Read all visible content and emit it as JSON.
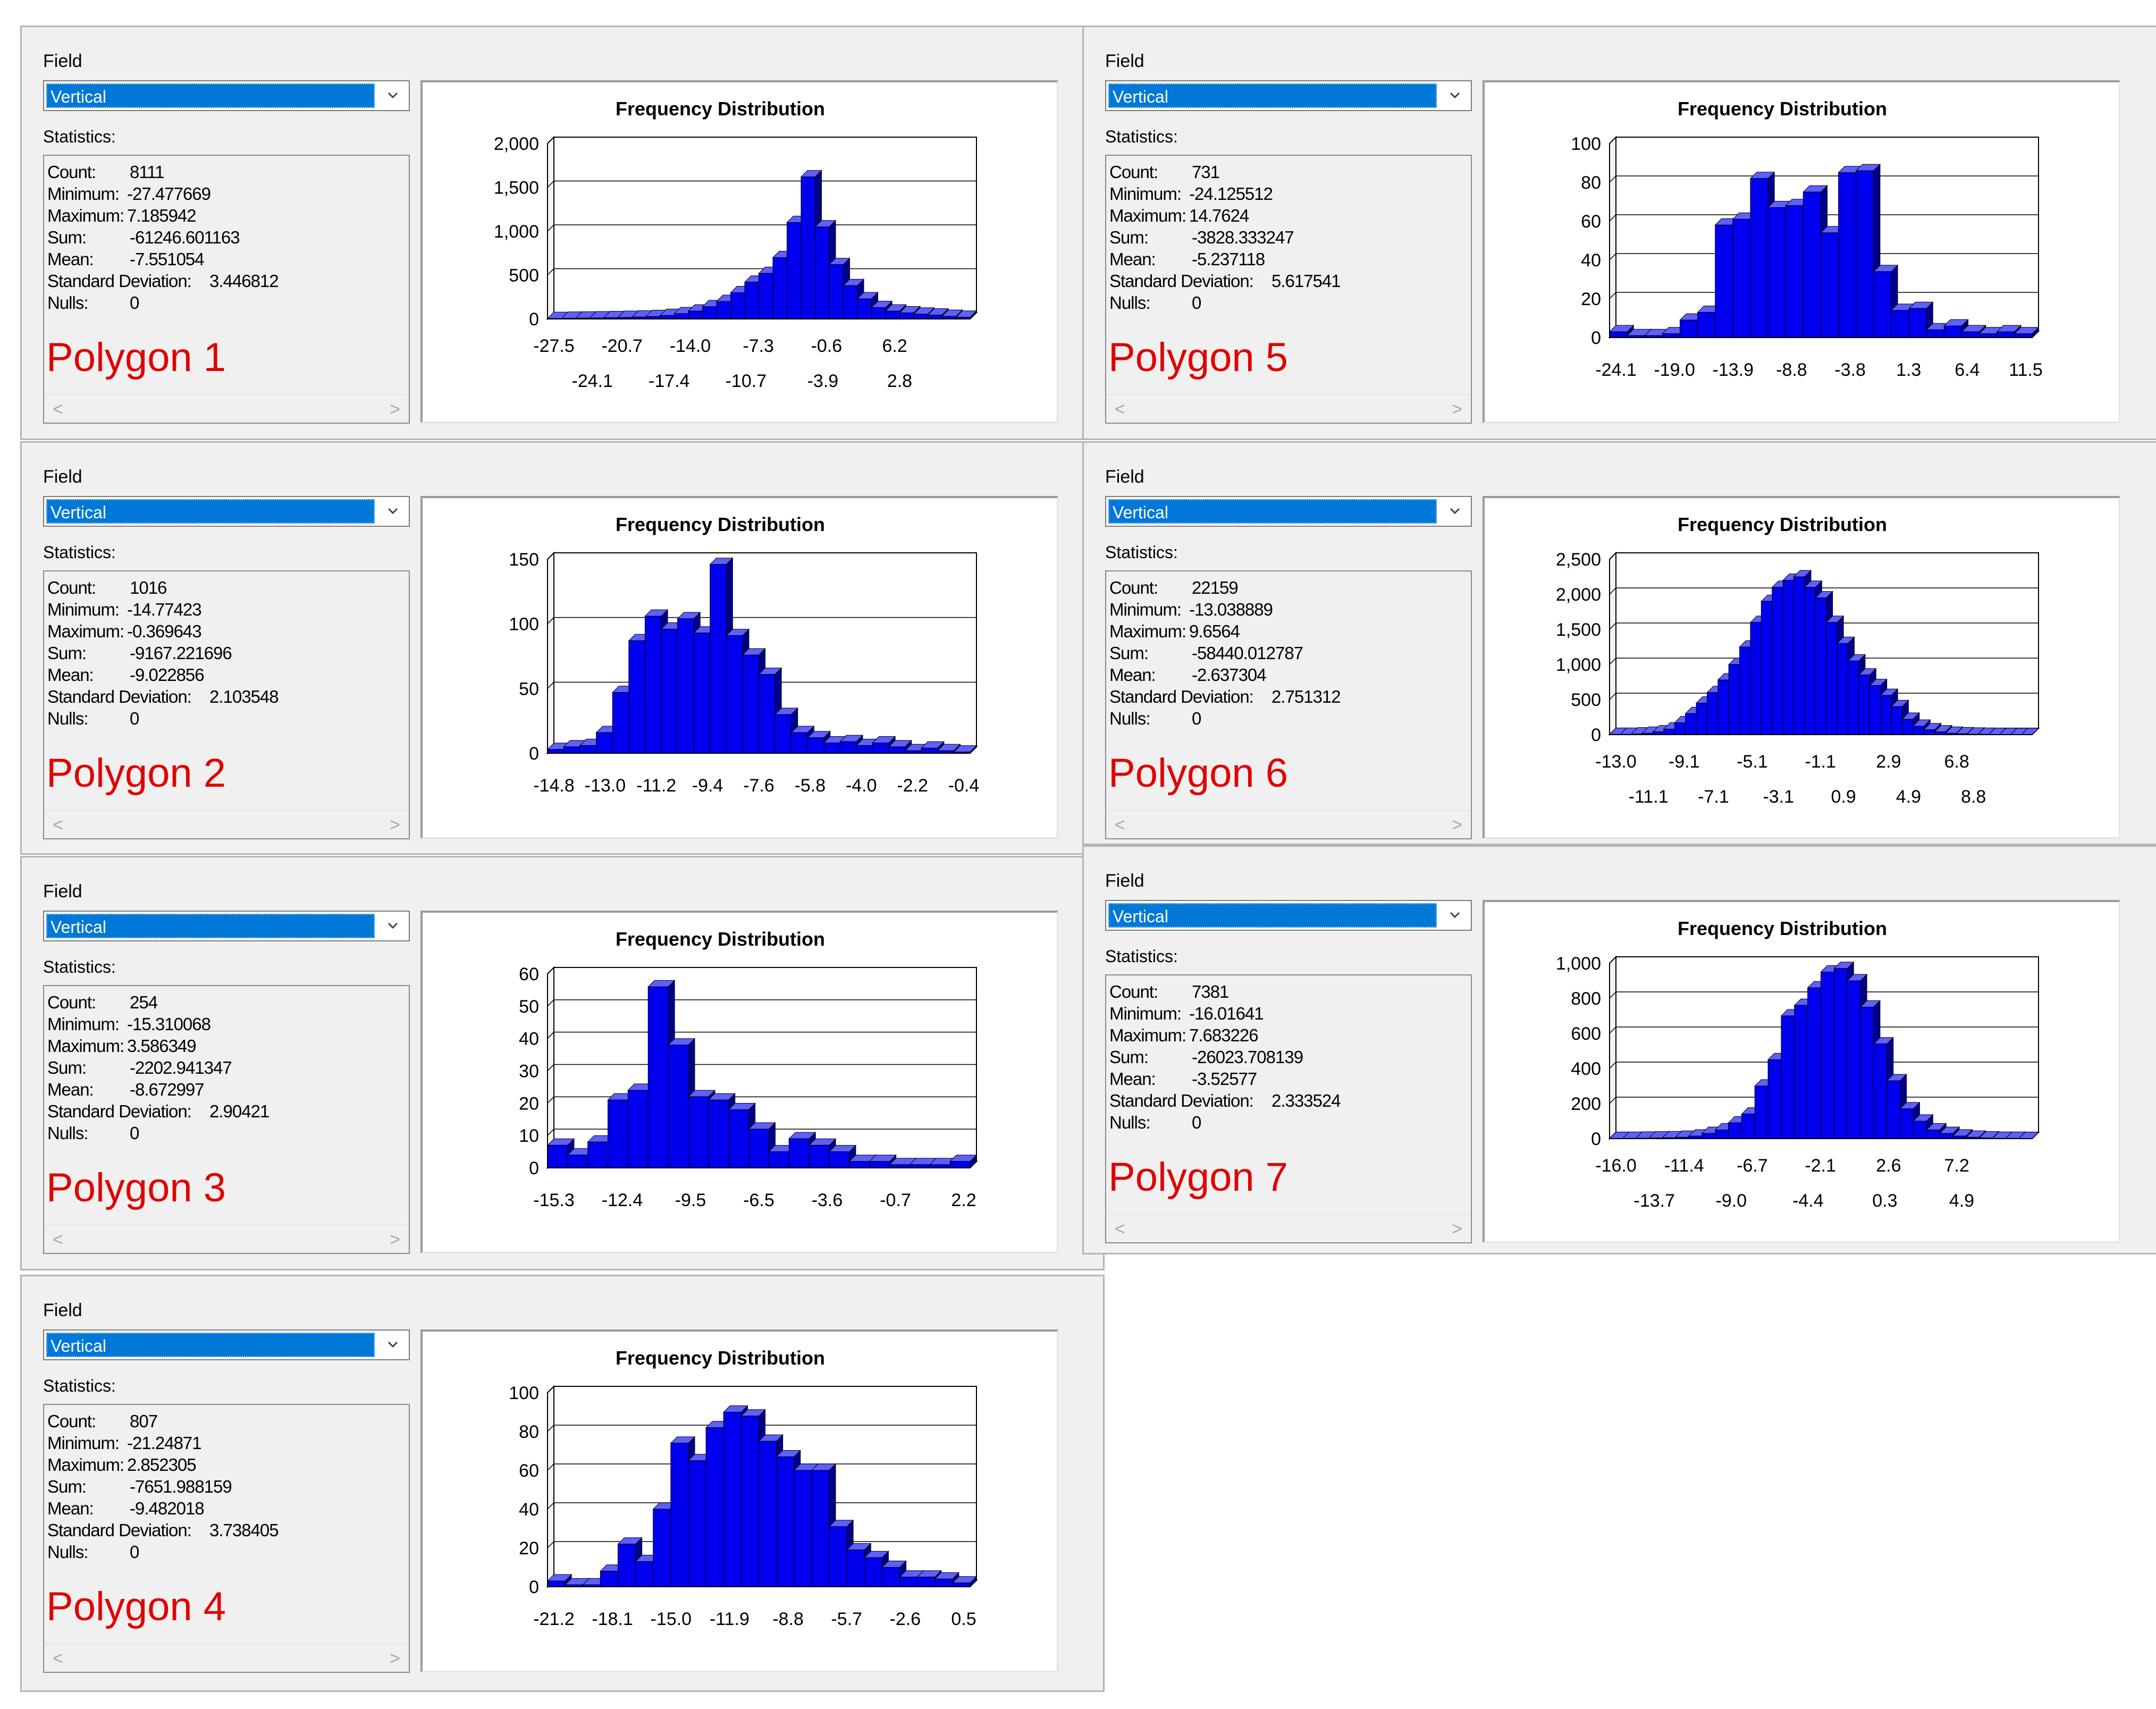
{
  "colors": {
    "bar_front": "#0000ee",
    "bar_top": "#5f5fff",
    "bar_side": "#000088",
    "selection": "#0078d7",
    "polygon_label": "#e00000"
  },
  "panels": [
    {
      "field_label": "Field",
      "field_value": "Vertical",
      "statistics_label": "Statistics:",
      "stats": [
        {
          "key": "Count:",
          "value": "8111"
        },
        {
          "key": "Minimum:",
          "value": "-27.477669"
        },
        {
          "key": "Maximum:",
          "value": "7.185942"
        },
        {
          "key": "Sum:",
          "value": "-61246.601163"
        },
        {
          "key": "Mean:",
          "value": "-7.551054"
        },
        {
          "key": "Standard Deviation:",
          "value": "3.446812"
        },
        {
          "key": "Nulls:",
          "value": "0"
        }
      ],
      "polygon_label": "Polygon 1",
      "scroll_left": "<",
      "scroll_right": ">",
      "chart_data": {
        "type": "bar",
        "title": "Frequency Distribution",
        "ylim": [
          0,
          2000
        ],
        "yticks": [
          "2,000",
          "1,500",
          "1,000",
          "500",
          "0"
        ],
        "xticks_top": [
          "-27.5",
          "-20.7",
          "-14.0",
          "-7.3",
          "-0.6",
          "6.2"
        ],
        "xticks_bottom": [
          "-24.1",
          "-17.4",
          "-10.7",
          "-3.9",
          "2.8"
        ],
        "values": [
          5,
          8,
          10,
          12,
          15,
          18,
          22,
          28,
          40,
          60,
          90,
          140,
          200,
          300,
          420,
          520,
          700,
          1100,
          1620,
          1050,
          620,
          380,
          230,
          130,
          90,
          70,
          55,
          45,
          30,
          20
        ]
      }
    },
    {
      "field_label": "Field",
      "field_value": "Vertical",
      "statistics_label": "Statistics:",
      "stats": [
        {
          "key": "Count:",
          "value": "1016"
        },
        {
          "key": "Minimum:",
          "value": "-14.77423"
        },
        {
          "key": "Maximum:",
          "value": "-0.369643"
        },
        {
          "key": "Sum:",
          "value": "-9167.221696"
        },
        {
          "key": "Mean:",
          "value": "-9.022856"
        },
        {
          "key": "Standard Deviation:",
          "value": "2.103548"
        },
        {
          "key": "Nulls:",
          "value": "0"
        }
      ],
      "polygon_label": "Polygon 2",
      "scroll_left": "<",
      "scroll_right": ">",
      "chart_data": {
        "type": "bar",
        "title": "Frequency Distribution",
        "ylim": [
          0,
          150
        ],
        "yticks": [
          "150",
          "100",
          "50",
          "0"
        ],
        "xticks_top": [
          "-14.8",
          "-13.0",
          "-11.2",
          "-9.4",
          "-7.6",
          "-5.8",
          "-4.0",
          "-2.2",
          "-0.4"
        ],
        "xticks_bottom": [],
        "values": [
          3,
          5,
          6,
          16,
          47,
          87,
          106,
          96,
          104,
          93,
          146,
          91,
          76,
          61,
          30,
          16,
          12,
          8,
          9,
          6,
          8,
          5,
          2,
          4,
          2,
          1
        ]
      }
    },
    {
      "field_label": "Field",
      "field_value": "Vertical",
      "statistics_label": "Statistics:",
      "stats": [
        {
          "key": "Count:",
          "value": "254"
        },
        {
          "key": "Minimum:",
          "value": "-15.310068"
        },
        {
          "key": "Maximum:",
          "value": "3.586349"
        },
        {
          "key": "Sum:",
          "value": "-2202.941347"
        },
        {
          "key": "Mean:",
          "value": "-8.672997"
        },
        {
          "key": "Standard Deviation:",
          "value": "2.90421"
        },
        {
          "key": "Nulls:",
          "value": "0"
        }
      ],
      "polygon_label": "Polygon 3",
      "scroll_left": "<",
      "scroll_right": ">",
      "chart_data": {
        "type": "bar",
        "title": "Frequency Distribution",
        "ylim": [
          0,
          60
        ],
        "yticks": [
          "60",
          "50",
          "40",
          "30",
          "20",
          "10",
          "0"
        ],
        "xticks_top": [
          "-15.3",
          "-12.4",
          "-9.5",
          "-6.5",
          "-3.6",
          "-0.7",
          "2.2"
        ],
        "xticks_bottom": [],
        "values": [
          7,
          4,
          8,
          21,
          24,
          56,
          38,
          22,
          21,
          18,
          12,
          5,
          9,
          7,
          5,
          2,
          2,
          1,
          1,
          1,
          2
        ]
      }
    },
    {
      "field_label": "Field",
      "field_value": "Vertical",
      "statistics_label": "Statistics:",
      "stats": [
        {
          "key": "Count:",
          "value": "807"
        },
        {
          "key": "Minimum:",
          "value": "-21.24871"
        },
        {
          "key": "Maximum:",
          "value": "2.852305"
        },
        {
          "key": "Sum:",
          "value": "-7651.988159"
        },
        {
          "key": "Mean:",
          "value": "-9.482018"
        },
        {
          "key": "Standard Deviation:",
          "value": "3.738405"
        },
        {
          "key": "Nulls:",
          "value": "0"
        }
      ],
      "polygon_label": "Polygon 4",
      "scroll_left": "<",
      "scroll_right": ">",
      "chart_data": {
        "type": "bar",
        "title": "Frequency Distribution",
        "ylim": [
          0,
          100
        ],
        "yticks": [
          "100",
          "80",
          "60",
          "40",
          "20",
          "0"
        ],
        "xticks_top": [
          "-21.2",
          "-18.1",
          "-15.0",
          "-11.9",
          "-8.8",
          "-5.7",
          "-2.6",
          "0.5"
        ],
        "xticks_bottom": [],
        "values": [
          3,
          1,
          1,
          8,
          22,
          13,
          40,
          74,
          65,
          82,
          90,
          88,
          75,
          67,
          60,
          60,
          31,
          19,
          15,
          10,
          5,
          5,
          4,
          2
        ]
      }
    },
    {
      "field_label": "Field",
      "field_value": "Vertical",
      "statistics_label": "Statistics:",
      "stats": [
        {
          "key": "Count:",
          "value": "731"
        },
        {
          "key": "Minimum:",
          "value": "-24.125512"
        },
        {
          "key": "Maximum:",
          "value": "14.7624"
        },
        {
          "key": "Sum:",
          "value": "-3828.333247"
        },
        {
          "key": "Mean:",
          "value": "-5.237118"
        },
        {
          "key": "Standard Deviation:",
          "value": "5.617541"
        },
        {
          "key": "Nulls:",
          "value": "0"
        }
      ],
      "polygon_label": "Polygon 5",
      "scroll_left": "<",
      "scroll_right": ">",
      "chart_data": {
        "type": "bar",
        "title": "Frequency Distribution",
        "ylim": [
          0,
          100
        ],
        "yticks": [
          "100",
          "80",
          "60",
          "40",
          "20",
          "0"
        ],
        "xticks_top": [
          "-24.1",
          "-19.0",
          "-13.9",
          "-8.8",
          "-3.8",
          "1.3",
          "6.4",
          "11.5"
        ],
        "xticks_bottom": [],
        "values": [
          3,
          1,
          1,
          2,
          9,
          13,
          58,
          61,
          82,
          67,
          68,
          75,
          54,
          85,
          86,
          34,
          14,
          15,
          4,
          6,
          3,
          2,
          3,
          2
        ]
      }
    },
    {
      "field_label": "Field",
      "field_value": "Vertical",
      "statistics_label": "Statistics:",
      "stats": [
        {
          "key": "Count:",
          "value": "22159"
        },
        {
          "key": "Minimum:",
          "value": "-13.038889"
        },
        {
          "key": "Maximum:",
          "value": "9.6564"
        },
        {
          "key": "Sum:",
          "value": "-58440.012787"
        },
        {
          "key": "Mean:",
          "value": "-2.637304"
        },
        {
          "key": "Standard Deviation:",
          "value": "2.751312"
        },
        {
          "key": "Nulls:",
          "value": "0"
        }
      ],
      "polygon_label": "Polygon 6",
      "scroll_left": "<",
      "scroll_right": ">",
      "chart_data": {
        "type": "bar",
        "title": "Frequency Distribution",
        "ylim": [
          0,
          2500
        ],
        "yticks": [
          "2,500",
          "2,000",
          "1,500",
          "1,000",
          "500",
          "0"
        ],
        "xticks_top": [
          "-13.0",
          "-9.1",
          "-5.1",
          "-1.1",
          "2.9",
          "6.8"
        ],
        "xticks_bottom": [
          "-11.1",
          "-7.1",
          "-3.1",
          "0.9",
          "4.9",
          "8.8"
        ],
        "values": [
          5,
          5,
          10,
          20,
          40,
          80,
          170,
          300,
          450,
          600,
          780,
          1000,
          1250,
          1600,
          1900,
          2100,
          2200,
          2250,
          2100,
          1950,
          1600,
          1300,
          1050,
          850,
          700,
          560,
          400,
          220,
          120,
          70,
          40,
          20,
          12,
          8,
          5,
          3,
          2,
          1,
          1
        ]
      }
    },
    {
      "field_label": "Field",
      "field_value": "Vertical",
      "statistics_label": "Statistics:",
      "stats": [
        {
          "key": "Count:",
          "value": "7381"
        },
        {
          "key": "Minimum:",
          "value": "-16.01641"
        },
        {
          "key": "Maximum:",
          "value": "7.683226"
        },
        {
          "key": "Sum:",
          "value": "-26023.708139"
        },
        {
          "key": "Mean:",
          "value": "-3.52577"
        },
        {
          "key": "Standard Deviation:",
          "value": "2.333524"
        },
        {
          "key": "Nulls:",
          "value": "0"
        }
      ],
      "polygon_label": "Polygon 7",
      "scroll_left": "<",
      "scroll_right": ">",
      "chart_data": {
        "type": "bar",
        "title": "Frequency Distribution",
        "ylim": [
          0,
          1000
        ],
        "yticks": [
          "1,000",
          "800",
          "600",
          "400",
          "200",
          "0"
        ],
        "xticks_top": [
          "-16.0",
          "-11.4",
          "-6.7",
          "-2.1",
          "2.6",
          "7.2"
        ],
        "xticks_bottom": [
          "-13.7",
          "-9.0",
          "-4.4",
          "0.3",
          "4.9"
        ],
        "values": [
          1,
          2,
          3,
          4,
          5,
          8,
          15,
          30,
          50,
          90,
          140,
          300,
          450,
          700,
          760,
          860,
          950,
          970,
          900,
          750,
          540,
          330,
          170,
          100,
          50,
          30,
          15,
          8,
          4,
          2,
          2,
          1
        ]
      }
    }
  ]
}
